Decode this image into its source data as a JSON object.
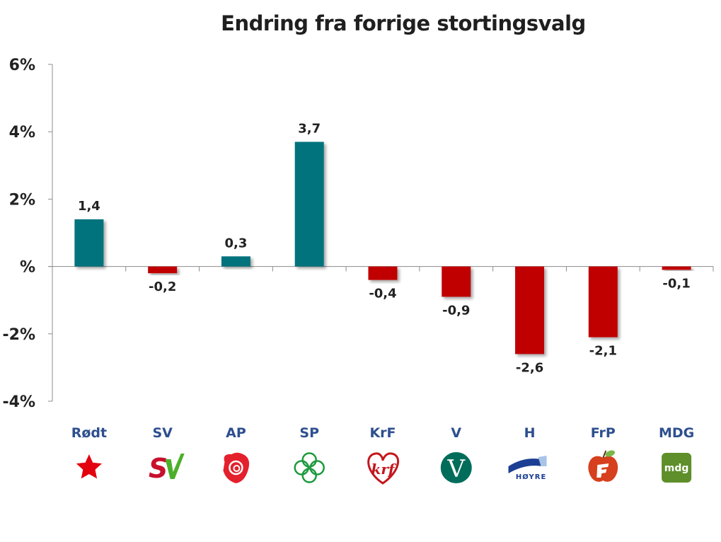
{
  "chart_data": {
    "type": "bar",
    "title": "Endring fra forrige stortingsvalg",
    "xlabel": "",
    "ylabel": "",
    "categories": [
      "Rødt",
      "SV",
      "AP",
      "SP",
      "KrF",
      "V",
      "H",
      "FrP",
      "MDG"
    ],
    "values": [
      1.4,
      -0.2,
      0.3,
      3.7,
      -0.4,
      -0.9,
      -2.6,
      -2.1,
      -0.1
    ],
    "data_labels": [
      "1,4",
      "-0,2",
      "0,3",
      "3,7",
      "-0,4",
      "-0,9",
      "-2,6",
      "-2,1",
      "-0,1"
    ],
    "ylim": [
      -4,
      6
    ],
    "yticks": [
      6,
      4,
      2,
      0,
      -2,
      -4
    ],
    "ytick_labels": [
      "6%",
      "4%",
      "2%",
      "%",
      "-2%",
      "-4%"
    ],
    "grid": false,
    "legend": "none",
    "colors": {
      "positive": "#00737d",
      "negative": "#c00000",
      "category_label": "#2e4f8f"
    },
    "category_logos": [
      "rodt-star-logo",
      "sv-logo",
      "ap-rose-logo",
      "sp-clover-logo",
      "krf-heart-logo",
      "venstre-v-logo",
      "hoyre-logo",
      "frp-apple-logo",
      "mdg-logo"
    ],
    "logo_texts": {
      "hoyre": "HØYRE",
      "mdg": "mdg"
    }
  }
}
